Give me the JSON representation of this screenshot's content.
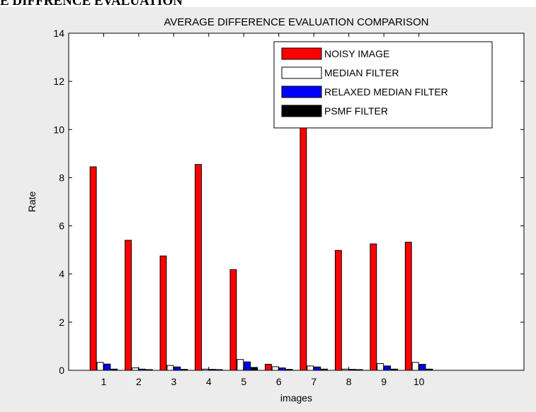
{
  "document": {
    "heading": "E DIFFRENCE EVALUATION"
  },
  "chart_data": {
    "type": "bar",
    "title": "AVERAGE DIFFERENCE EVALUATION COMPARISON",
    "xlabel": "images",
    "ylabel": "Rate",
    "categories": [
      "1",
      "2",
      "3",
      "4",
      "5",
      "6",
      "7",
      "8",
      "9",
      "10"
    ],
    "xlim": [
      0,
      13
    ],
    "ylim": [
      0,
      14
    ],
    "yticks": [
      0,
      2,
      4,
      6,
      8,
      10,
      12,
      14
    ],
    "legend_position": "top-right",
    "series": [
      {
        "name": "NOISY IMAGE",
        "color": "#ff0000",
        "values": [
          8.45,
          5.4,
          4.75,
          8.55,
          4.18,
          0.25,
          10.9,
          4.98,
          5.25,
          5.32
        ]
      },
      {
        "name": "MEDIAN FILTER",
        "color": "#ffffff",
        "values": [
          0.33,
          0.1,
          0.2,
          0.05,
          0.45,
          0.15,
          0.18,
          0.05,
          0.28,
          0.33
        ]
      },
      {
        "name": "RELAXED MEDIAN FILTER",
        "color": "#0000ff",
        "values": [
          0.26,
          0.05,
          0.14,
          0.04,
          0.35,
          0.1,
          0.14,
          0.04,
          0.18,
          0.25
        ]
      },
      {
        "name": "PSMF FILTER",
        "color": "#000000",
        "values": [
          0.05,
          0.03,
          0.04,
          0.03,
          0.12,
          0.04,
          0.05,
          0.03,
          0.05,
          0.05
        ]
      }
    ]
  }
}
